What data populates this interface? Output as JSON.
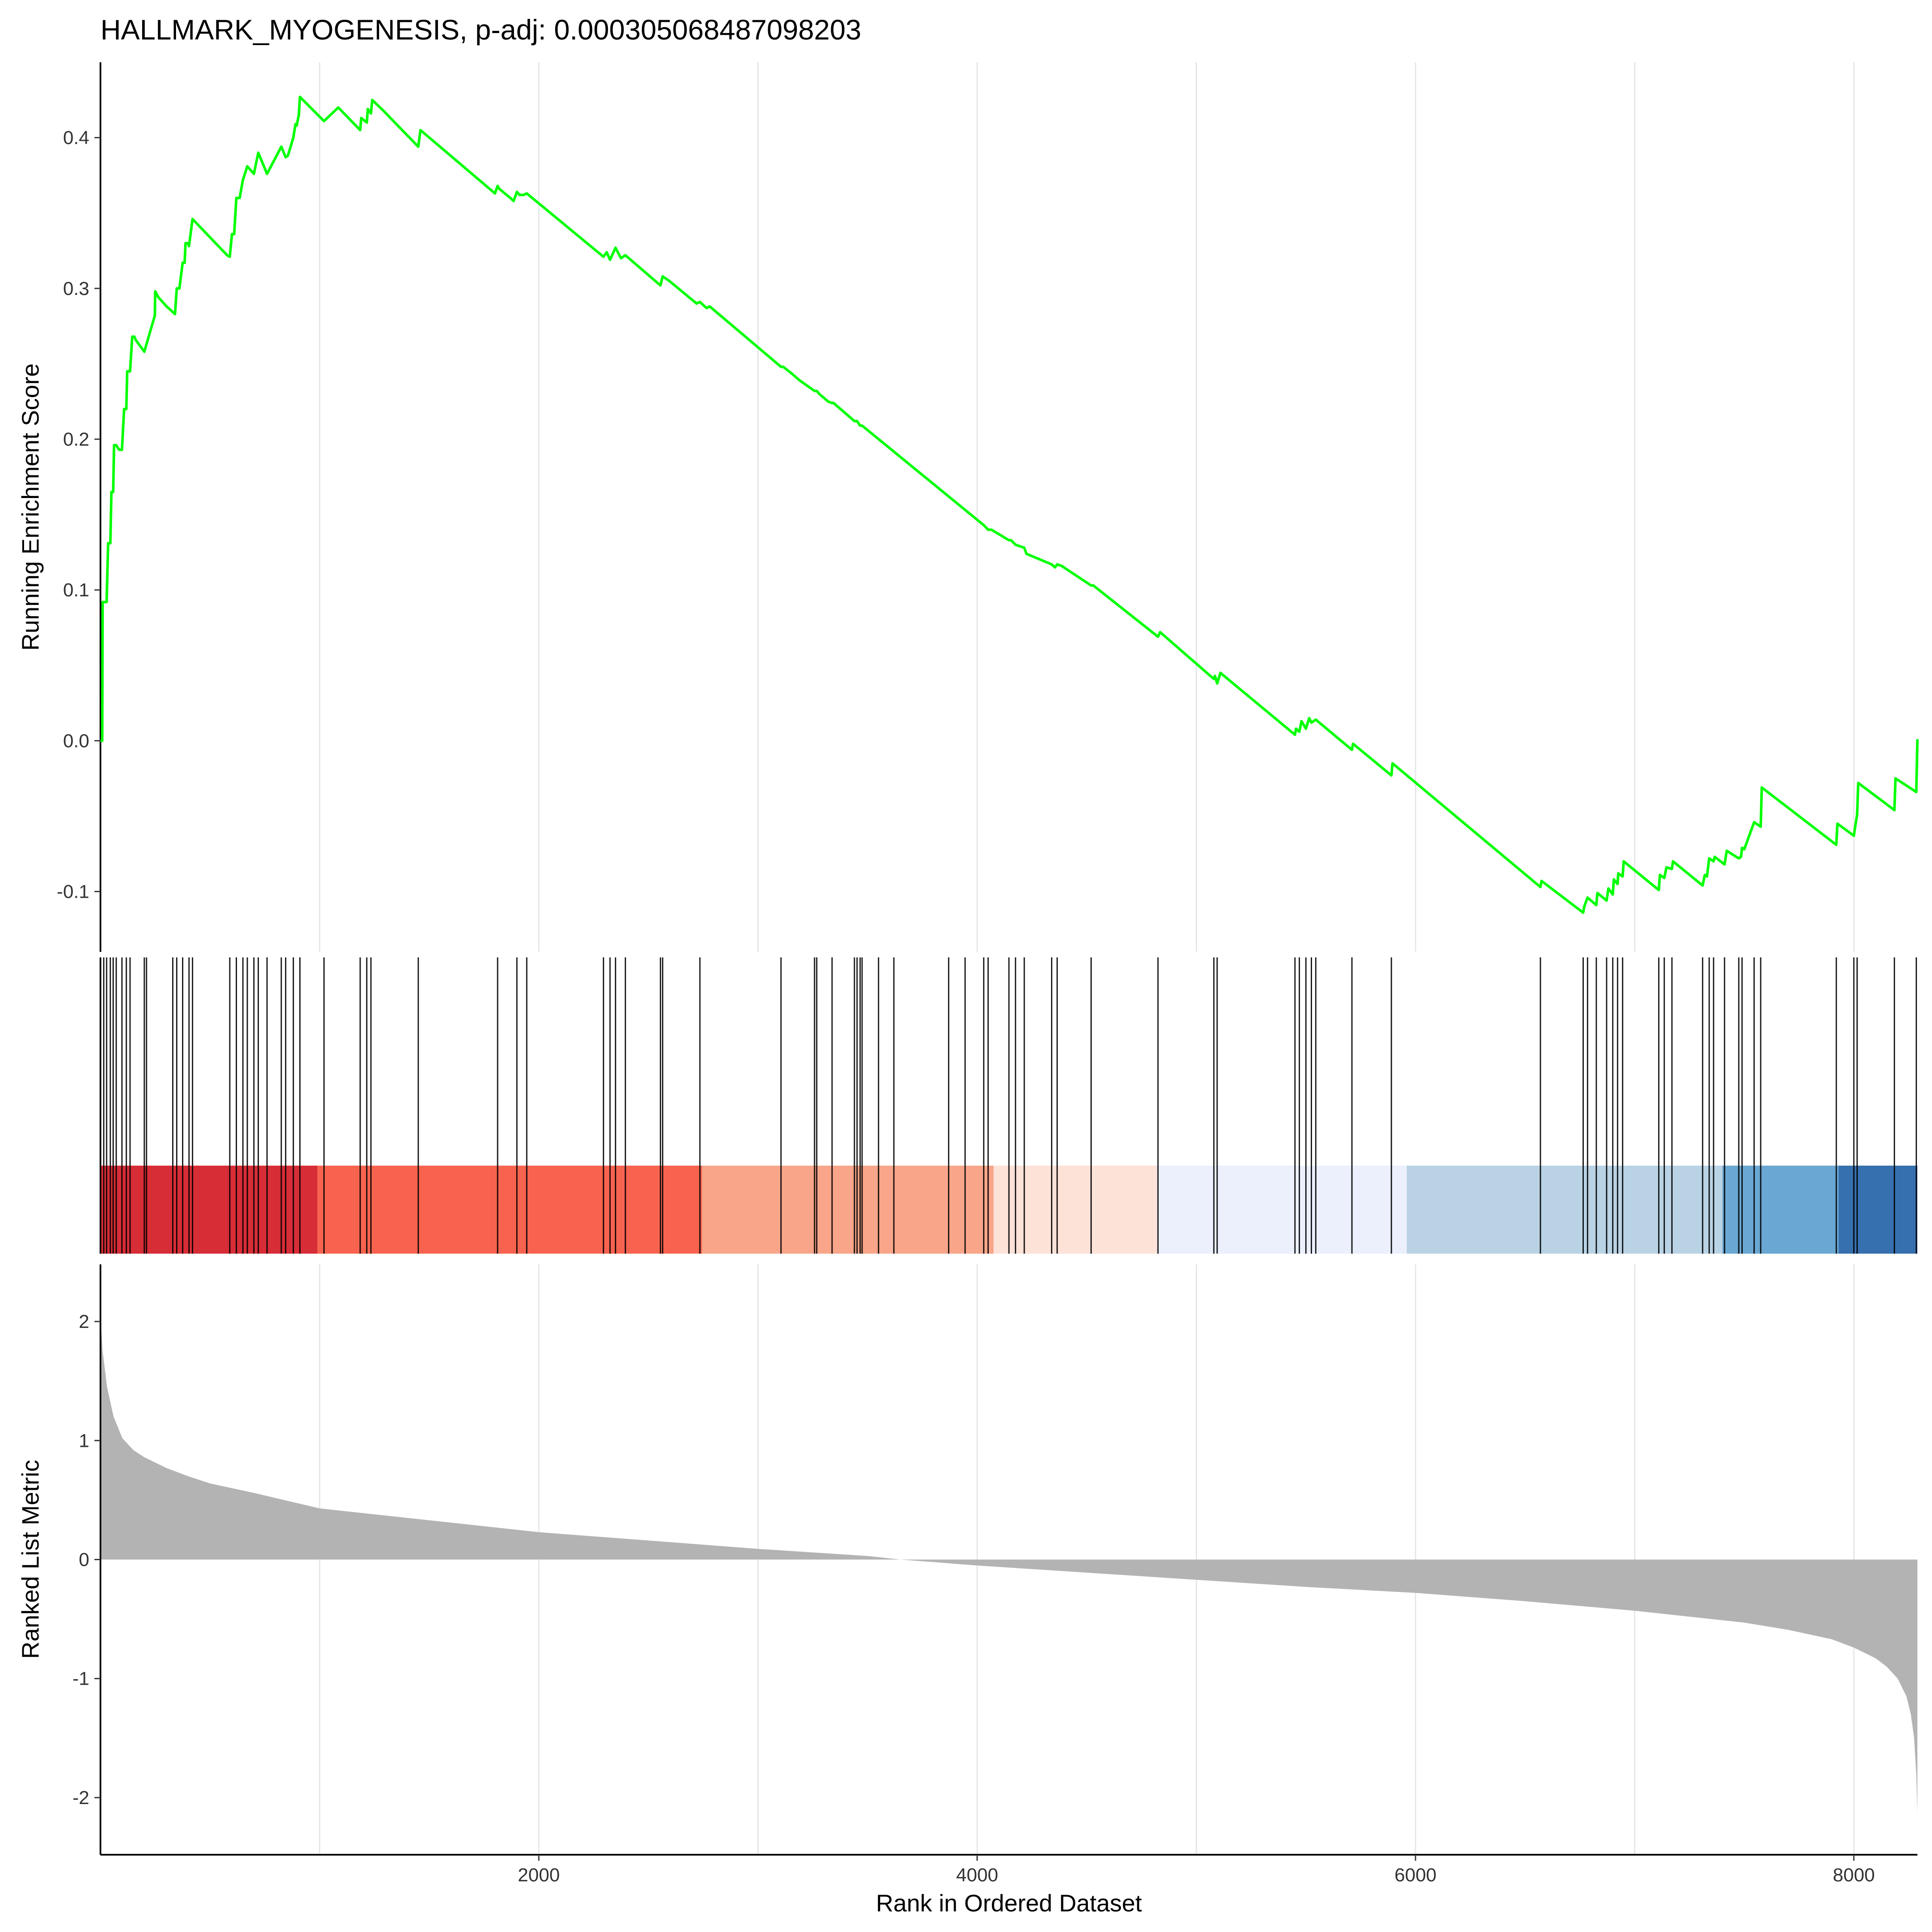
{
  "chart_data": {
    "type": "line",
    "title": "HALLMARK_MYOGENESIS, p-adj: 0.000305068487098203",
    "xlabel": "Rank in Ordered Dataset",
    "x_ticks": [
      2000,
      4000,
      6000,
      8000
    ],
    "xlim": [
      0,
      8290
    ],
    "colors": {
      "running_score": "#00ff00",
      "metric_fill": "#b3b3b3",
      "hit_lines": "#000000",
      "grid": "#e6e6e6"
    },
    "running_score": {
      "ylabel": "Running Enrichment Score",
      "y_ticks": [
        "-0.1",
        "0.0",
        "0.1",
        "0.2",
        "0.3",
        "0.4"
      ],
      "y_tick_values": [
        -0.1,
        0.0,
        0.1,
        0.2,
        0.3,
        0.4
      ],
      "ylim": [
        -0.14,
        0.45
      ],
      "x": [
        0,
        8,
        10,
        28,
        35,
        45,
        50,
        58,
        62,
        72,
        85,
        98,
        108,
        118,
        122,
        135,
        145,
        155,
        160,
        180,
        200,
        248,
        250,
        265,
        302,
        340,
        348,
        360,
        375,
        384,
        388,
        398,
        404,
        420,
        578,
        590,
        600,
        610,
        620,
        635,
        650,
        670,
        700,
        720,
        760,
        825,
        845,
        855,
        880,
        890,
        895,
        905,
        910,
        1020,
        1085,
        1185,
        1190,
        1215,
        1220,
        1234,
        1240,
        1290,
        1450,
        1460,
        1800,
        1812,
        1820,
        1870,
        1885,
        1900,
        1912,
        1930,
        1945,
        2295,
        2310,
        2325,
        2350,
        2375,
        2395,
        2555,
        2565,
        2595,
        2720,
        2735,
        2765,
        2780,
        3105,
        3115,
        3150,
        3190,
        3258,
        3268,
        3280,
        3320,
        3338,
        3345,
        3440,
        3452,
        3466,
        3475,
        4030,
        4050,
        4065,
        4145,
        4155,
        4175,
        4215,
        4225,
        4340,
        4355,
        4365,
        4385,
        4520,
        4530,
        4825,
        4835,
        5080,
        5085,
        5095,
        5110,
        5450,
        5455,
        5470,
        5480,
        5500,
        5515,
        5525,
        5545,
        5710,
        5715,
        5890,
        5895,
        6570,
        6575,
        6765,
        6770,
        6785,
        6825,
        6830,
        6872,
        6880,
        6900,
        6905,
        6922,
        6925,
        6945,
        6950,
        7110,
        7115,
        7135,
        7145,
        7170,
        7175,
        7310,
        7320,
        7330,
        7340,
        7360,
        7365,
        7410,
        7420,
        7475,
        7485,
        7490,
        7500,
        7545,
        7555,
        7575,
        7580,
        7920,
        7925,
        8000,
        8005,
        8015,
        8020,
        8185,
        8190,
        8285,
        8290
      ],
      "y": [
        0.0,
        0.0,
        0.092,
        0.092,
        0.131,
        0.131,
        0.165,
        0.165,
        0.196,
        0.196,
        0.193,
        0.193,
        0.22,
        0.22,
        0.245,
        0.245,
        0.268,
        0.268,
        0.266,
        0.262,
        0.258,
        0.282,
        0.298,
        0.294,
        0.288,
        0.283,
        0.3,
        0.3,
        0.317,
        0.317,
        0.33,
        0.33,
        0.328,
        0.346,
        0.322,
        0.321,
        0.336,
        0.336,
        0.36,
        0.36,
        0.372,
        0.381,
        0.376,
        0.39,
        0.376,
        0.394,
        0.387,
        0.388,
        0.4,
        0.409,
        0.408,
        0.415,
        0.427,
        0.411,
        0.42,
        0.405,
        0.413,
        0.41,
        0.419,
        0.416,
        0.425,
        0.418,
        0.394,
        0.405,
        0.363,
        0.368,
        0.366,
        0.36,
        0.358,
        0.364,
        0.362,
        0.362,
        0.363,
        0.321,
        0.324,
        0.319,
        0.327,
        0.32,
        0.322,
        0.302,
        0.308,
        0.305,
        0.29,
        0.291,
        0.287,
        0.288,
        0.248,
        0.248,
        0.244,
        0.239,
        0.232,
        0.232,
        0.23,
        0.225,
        0.224,
        0.224,
        0.212,
        0.212,
        0.209,
        0.209,
        0.143,
        0.14,
        0.14,
        0.133,
        0.133,
        0.13,
        0.128,
        0.124,
        0.117,
        0.115,
        0.117,
        0.116,
        0.103,
        0.103,
        0.069,
        0.072,
        0.041,
        0.043,
        0.038,
        0.045,
        0.004,
        0.008,
        0.006,
        0.013,
        0.008,
        0.015,
        0.012,
        0.014,
        -0.006,
        -0.002,
        -0.023,
        -0.015,
        -0.097,
        -0.093,
        -0.114,
        -0.11,
        -0.104,
        -0.109,
        -0.101,
        -0.106,
        -0.098,
        -0.102,
        -0.092,
        -0.095,
        -0.088,
        -0.09,
        -0.08,
        -0.099,
        -0.089,
        -0.091,
        -0.084,
        -0.085,
        -0.08,
        -0.096,
        -0.089,
        -0.09,
        -0.078,
        -0.08,
        -0.077,
        -0.082,
        -0.073,
        -0.078,
        -0.077,
        -0.071,
        -0.072,
        -0.054,
        -0.055,
        -0.057,
        -0.031,
        -0.069,
        -0.055,
        -0.063,
        -0.058,
        -0.049,
        -0.028,
        -0.046,
        -0.025,
        -0.034,
        0.001
      ]
    },
    "gene_hits": [
      15,
      28,
      45,
      58,
      72,
      98,
      118,
      135,
      200,
      210,
      330,
      348,
      375,
      404,
      420,
      590,
      620,
      650,
      670,
      700,
      720,
      760,
      825,
      845,
      880,
      910,
      1020,
      1185,
      1215,
      1234,
      1450,
      1812,
      1900,
      1945,
      2295,
      2325,
      2350,
      2395,
      2555,
      2565,
      2735,
      3105,
      3258,
      3268,
      3338,
      3440,
      3452,
      3466,
      3475,
      3550,
      3620,
      3870,
      3945,
      4030,
      4050,
      4145,
      4175,
      4215,
      4340,
      4365,
      4520,
      4825,
      5080,
      5095,
      5450,
      5470,
      5500,
      5525,
      5545,
      5710,
      5890,
      6570,
      6765,
      6785,
      6825,
      6872,
      6900,
      6922,
      6945,
      7110,
      7135,
      7170,
      7310,
      7340,
      7360,
      7410,
      7475,
      7490,
      7545,
      7575,
      7920,
      8000,
      8015,
      8185,
      8285
    ],
    "color_bar": [
      {
        "from": 0,
        "to": 990,
        "color": "#d72d36"
      },
      {
        "from": 990,
        "to": 2745,
        "color": "#f7634f"
      },
      {
        "from": 2745,
        "to": 4075,
        "color": "#f8a589"
      },
      {
        "from": 4075,
        "to": 4820,
        "color": "#fde2d8"
      },
      {
        "from": 4820,
        "to": 5960,
        "color": "#ecf0fd"
      },
      {
        "from": 5960,
        "to": 7400,
        "color": "#b9d2e4"
      },
      {
        "from": 7400,
        "to": 7930,
        "color": "#6aa7d2"
      },
      {
        "from": 7930,
        "to": 8290,
        "color": "#3670ae"
      }
    ],
    "ranked_metric": {
      "ylabel": "Ranked List Metric",
      "y_ticks": [
        "-2",
        "-1",
        "0",
        "1",
        "2"
      ],
      "y_tick_values": [
        -2,
        -1,
        0,
        1,
        2
      ],
      "ylim": [
        -2.48,
        2.48
      ],
      "x": [
        0,
        10,
        30,
        60,
        100,
        150,
        200,
        300,
        400,
        500,
        700,
        1000,
        1500,
        2000,
        2500,
        3000,
        3500,
        3650,
        4000,
        4500,
        5000,
        5500,
        6000,
        6500,
        7000,
        7500,
        7700,
        7900,
        8000,
        8100,
        8150,
        8200,
        8240,
        8260,
        8275,
        8285,
        8290
      ],
      "y": [
        2.05,
        1.75,
        1.45,
        1.2,
        1.02,
        0.92,
        0.86,
        0.77,
        0.7,
        0.64,
        0.56,
        0.43,
        0.33,
        0.23,
        0.16,
        0.09,
        0.03,
        0.0,
        -0.05,
        -0.11,
        -0.17,
        -0.23,
        -0.28,
        -0.35,
        -0.43,
        -0.53,
        -0.59,
        -0.67,
        -0.74,
        -0.83,
        -0.9,
        -1.0,
        -1.15,
        -1.3,
        -1.5,
        -1.8,
        -2.13
      ]
    }
  }
}
